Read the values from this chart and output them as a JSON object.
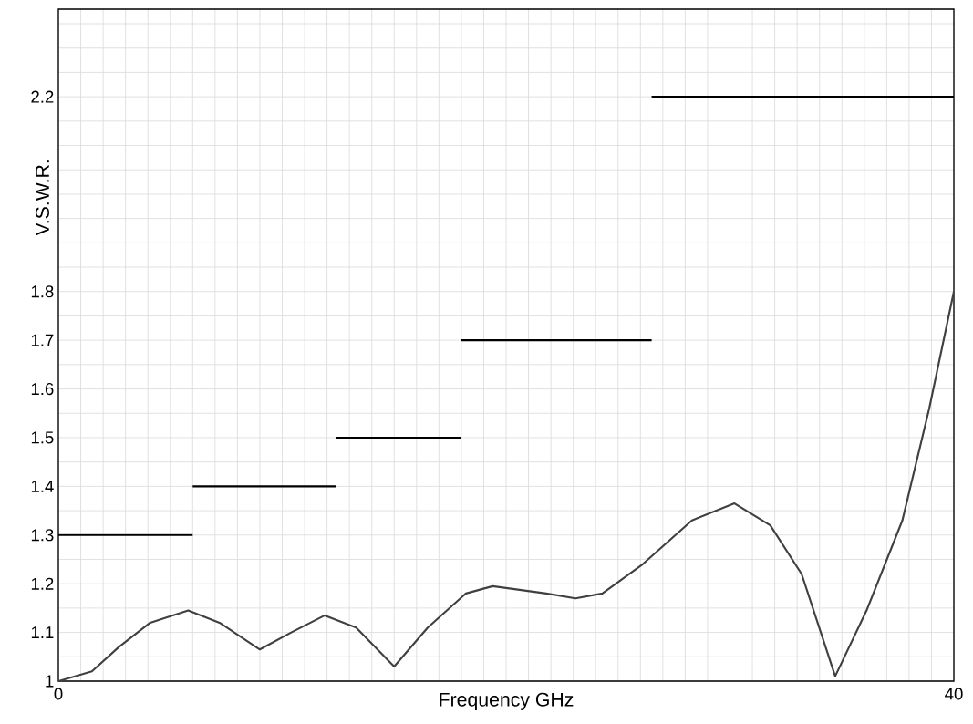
{
  "chart_data": {
    "type": "line",
    "xlabel": "Frequency GHz",
    "ylabel": "V.S.W.R.",
    "xlim": [
      0,
      40
    ],
    "ylim": [
      1,
      2.38
    ],
    "xticks": [
      0,
      {
        "value": 1,
        "label": null
      },
      {
        "value": 2,
        "label": null
      },
      {
        "value": 3,
        "label": null
      },
      {
        "value": 4,
        "label": null
      },
      {
        "value": 5,
        "label": null
      },
      {
        "value": 6,
        "label": null
      },
      {
        "value": 7,
        "label": null
      },
      {
        "value": 8,
        "label": null
      },
      {
        "value": 9,
        "label": null
      },
      {
        "value": 10,
        "label": null
      },
      {
        "value": 11,
        "label": null
      },
      {
        "value": 12,
        "label": null
      },
      {
        "value": 13,
        "label": null
      },
      {
        "value": 14,
        "label": null
      },
      {
        "value": 15,
        "label": null
      },
      {
        "value": 16,
        "label": null
      },
      {
        "value": 17,
        "label": null
      },
      {
        "value": 18,
        "label": null
      },
      {
        "value": 19,
        "label": null
      },
      {
        "value": 20,
        "label": null
      },
      {
        "value": 21,
        "label": null
      },
      {
        "value": 22,
        "label": null
      },
      {
        "value": 23,
        "label": null
      },
      {
        "value": 24,
        "label": null
      },
      {
        "value": 25,
        "label": null
      },
      {
        "value": 26,
        "label": null
      },
      {
        "value": 27,
        "label": null
      },
      {
        "value": 28,
        "label": null
      },
      {
        "value": 29,
        "label": null
      },
      {
        "value": 30,
        "label": null
      },
      {
        "value": 31,
        "label": null
      },
      {
        "value": 32,
        "label": null
      },
      {
        "value": 33,
        "label": null
      },
      {
        "value": 34,
        "label": null
      },
      {
        "value": 35,
        "label": null
      },
      {
        "value": 36,
        "label": null
      },
      {
        "value": 37,
        "label": null
      },
      {
        "value": 38,
        "label": null
      },
      {
        "value": 39,
        "label": null
      },
      40
    ],
    "yticks": [
      1,
      {
        "value": 1.05,
        "label": null
      },
      1.1,
      {
        "value": 1.15,
        "label": null
      },
      1.2,
      {
        "value": 1.25,
        "label": null
      },
      1.3,
      {
        "value": 1.35,
        "label": null
      },
      1.4,
      {
        "value": 1.45,
        "label": null
      },
      1.5,
      {
        "value": 1.55,
        "label": null
      },
      1.6,
      {
        "value": 1.65,
        "label": null
      },
      1.7,
      {
        "value": 1.75,
        "label": null
      },
      1.8,
      {
        "value": 1.85,
        "label": null
      },
      {
        "value": 1.9,
        "label": null
      },
      {
        "value": 1.95,
        "label": null
      },
      {
        "value": 2.0,
        "label": null
      },
      {
        "value": 2.05,
        "label": null
      },
      {
        "value": 2.1,
        "label": null
      },
      {
        "value": 2.15,
        "label": null
      },
      2.2,
      {
        "value": 2.25,
        "label": null
      },
      {
        "value": 2.3,
        "label": null
      },
      {
        "value": 2.35,
        "label": null
      }
    ],
    "grid": true,
    "marker": "none",
    "line_style": "solid",
    "series": [
      {
        "color": "#404040",
        "x": [
          0,
          1.5,
          2.7,
          4.1,
          5.8,
          7.2,
          9.0,
          10.4,
          11.9,
          13.3,
          15.0,
          16.5,
          18.2,
          19.4,
          21.8,
          23.1,
          24.3,
          26.1,
          28.3,
          30.2,
          31.8,
          33.2,
          34.7,
          36.1,
          37.7,
          38.9,
          40
        ],
        "values": [
          1.0,
          1.02,
          1.07,
          1.12,
          1.145,
          1.12,
          1.065,
          1.1,
          1.135,
          1.11,
          1.03,
          1.11,
          1.18,
          1.195,
          1.18,
          1.17,
          1.18,
          1.24,
          1.33,
          1.365,
          1.32,
          1.22,
          1.01,
          1.145,
          1.33,
          1.56,
          1.8
        ]
      },
      {
        "color": "#000000",
        "x": [
          0,
          6
        ],
        "values": [
          1.3,
          1.3
        ]
      },
      {
        "color": "#000000",
        "x": [
          6,
          12.4
        ],
        "values": [
          1.4,
          1.4
        ]
      },
      {
        "color": "#000000",
        "x": [
          12.4,
          18
        ],
        "values": [
          1.5,
          1.5
        ]
      },
      {
        "color": "#000000",
        "x": [
          18,
          26.5
        ],
        "values": [
          1.7,
          1.7
        ]
      },
      {
        "color": "#000000",
        "x": [
          26.5,
          40
        ],
        "values": [
          2.2,
          2.2
        ]
      }
    ]
  }
}
